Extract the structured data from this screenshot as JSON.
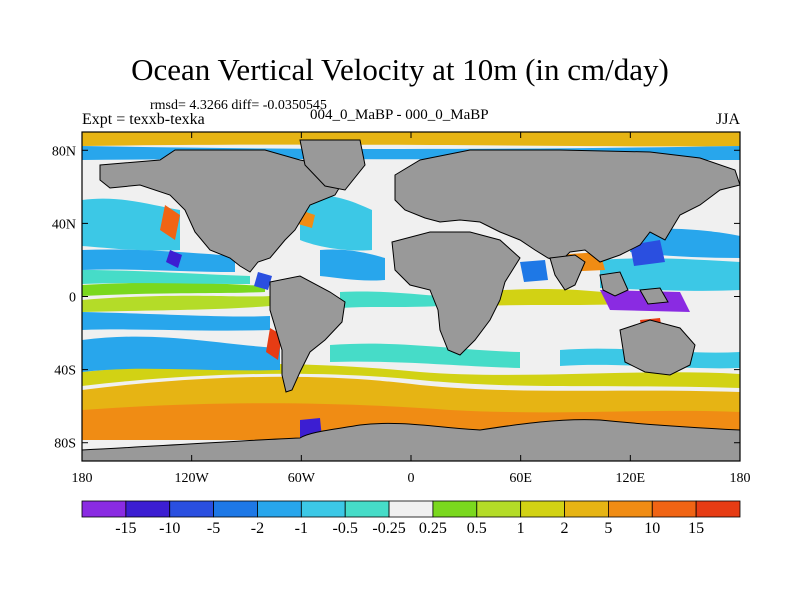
{
  "title": "Ocean Vertical Velocity at 10m (in cm/day)",
  "stats": "rmsd= 4.3266 diff= -0.0350545",
  "experiment": "Expt = texxb-texka",
  "difference_label": "004_0_MaBP - 000_0_MaBP",
  "season": "JJA",
  "axes": {
    "y_ticks": [
      {
        "value": 80,
        "label": "80N"
      },
      {
        "value": 40,
        "label": "40N"
      },
      {
        "value": 0,
        "label": "0"
      },
      {
        "value": -40,
        "label": "40S"
      },
      {
        "value": -80,
        "label": "80S"
      }
    ],
    "x_ticks": [
      {
        "value": -180,
        "label": "180"
      },
      {
        "value": -120,
        "label": "120W"
      },
      {
        "value": -60,
        "label": "60W"
      },
      {
        "value": 0,
        "label": "0"
      },
      {
        "value": 60,
        "label": "60E"
      },
      {
        "value": 120,
        "label": "120E"
      },
      {
        "value": 180,
        "label": "180"
      }
    ],
    "lon_range": [
      -180,
      180
    ],
    "lat_range": [
      -90,
      90
    ]
  },
  "colorbar": {
    "colors": [
      "#8a2be2",
      "#3c1ed2",
      "#2a4fe0",
      "#1e78e6",
      "#28a6ec",
      "#3cc8e6",
      "#46dcc8",
      "#f0f0f0",
      "#7ad81e",
      "#b4dc28",
      "#d2d214",
      "#e6b414",
      "#f08c14",
      "#f06414",
      "#e63c14"
    ],
    "labels": [
      "-15",
      "-10",
      "-5",
      "-2",
      "-1",
      "-0.5",
      "-0.25",
      "0.25",
      "0.5",
      "1",
      "2",
      "5",
      "10",
      "15"
    ]
  },
  "map_colors": {
    "land": "#999999",
    "coastline": "#000000",
    "ocean_background": "#f0f0f0"
  }
}
